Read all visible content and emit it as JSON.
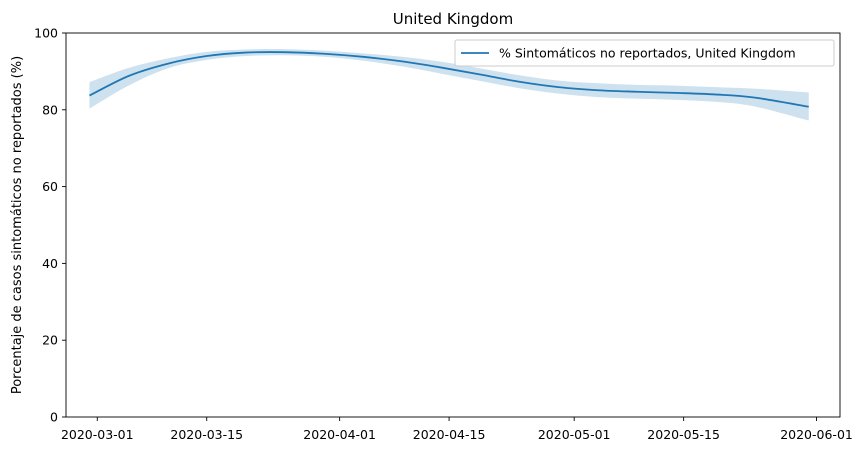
{
  "chart_data": {
    "type": "line",
    "title": "United Kingdom",
    "xlabel": "",
    "ylabel": "Porcentaje de casos sintomáticos no reportados (%)",
    "ylim": [
      0,
      100
    ],
    "xlim": [
      "2020-02-26",
      "2020-06-04"
    ],
    "yticks": [
      0,
      20,
      40,
      60,
      80,
      100
    ],
    "xticks": [
      "2020-03-01",
      "2020-03-15",
      "2020-04-01",
      "2020-04-15",
      "2020-05-01",
      "2020-05-15",
      "2020-06-01"
    ],
    "grid": false,
    "legend": "top-right",
    "series": [
      {
        "name": "% Sintomáticos no reportados, United Kingdom",
        "color": "#1f77b4",
        "band_color": "#1f77b4",
        "x": [
          "2020-02-29",
          "2020-03-05",
          "2020-03-10",
          "2020-03-15",
          "2020-03-20",
          "2020-03-25",
          "2020-03-30",
          "2020-04-04",
          "2020-04-09",
          "2020-04-14",
          "2020-04-19",
          "2020-04-24",
          "2020-04-29",
          "2020-05-04",
          "2020-05-09",
          "2020-05-14",
          "2020-05-19",
          "2020-05-24",
          "2020-05-31"
        ],
        "values": [
          83.7,
          88.8,
          92.0,
          94.0,
          94.9,
          95.0,
          94.6,
          93.8,
          92.6,
          91.0,
          89.2,
          87.3,
          85.9,
          85.1,
          84.7,
          84.4,
          84.0,
          83.2,
          80.8
        ],
        "lower": [
          80.3,
          86.3,
          90.8,
          93.0,
          94.0,
          94.2,
          93.8,
          92.8,
          91.3,
          89.4,
          87.5,
          85.6,
          84.2,
          83.3,
          82.9,
          82.6,
          82.1,
          80.9,
          77.2
        ],
        "upper": [
          87.2,
          90.9,
          93.4,
          95.1,
          95.7,
          95.8,
          95.4,
          94.7,
          93.8,
          92.5,
          90.8,
          89.0,
          87.6,
          86.9,
          86.5,
          86.3,
          85.9,
          85.5,
          84.5
        ]
      }
    ]
  }
}
